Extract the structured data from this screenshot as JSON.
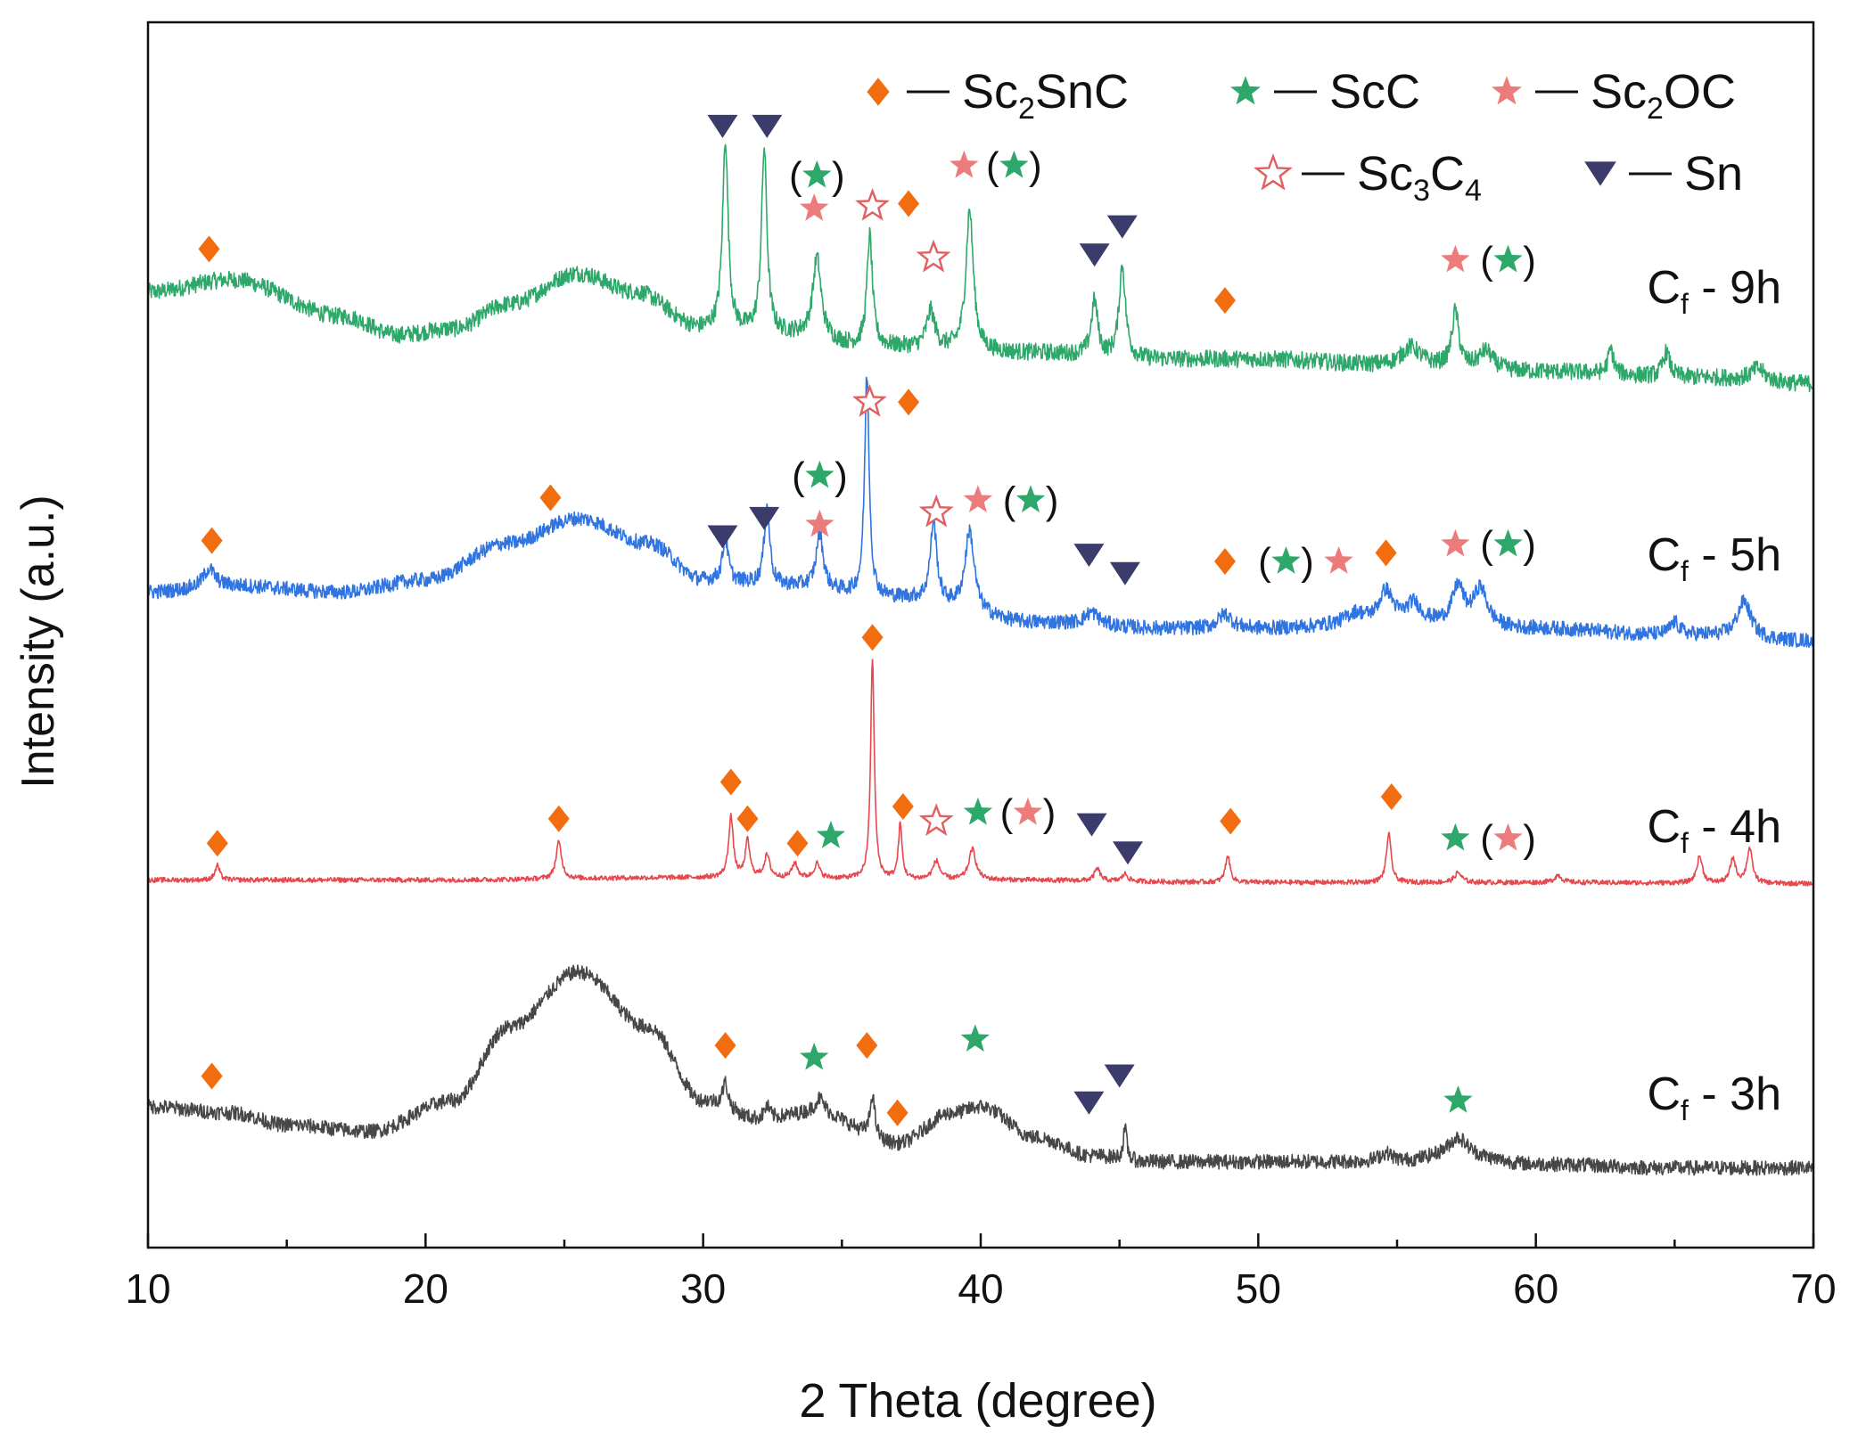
{
  "chart_data": {
    "type": "line",
    "title": "",
    "xlabel": "2 Theta (degree)",
    "ylabel": "Intensity (a.u.)",
    "xlim": [
      10,
      70
    ],
    "ylim": [
      0,
      1
    ],
    "x_ticks": [
      10,
      20,
      30,
      40,
      50,
      60,
      70
    ],
    "x_tick_labels": [
      "10",
      "20",
      "30",
      "40",
      "50",
      "60",
      "70"
    ],
    "grid": false,
    "legend_position": "top-right",
    "legend": [
      {
        "marker": "diamond",
        "color": "#f26c10",
        "label": "Sc2SnC",
        "base": "Sc",
        "sub": "2",
        "tail": "SnC"
      },
      {
        "marker": "star",
        "color": "#2ea86a",
        "label": "ScC",
        "base": "ScC",
        "sub": "",
        "tail": ""
      },
      {
        "marker": "star",
        "color": "#ec7c7c",
        "label": "Sc2OC",
        "base": "Sc",
        "sub": "2",
        "tail": "OC"
      },
      {
        "marker": "open-star",
        "color": "#e06060",
        "label": "Sc3C4",
        "base": "Sc",
        "sub": "3",
        "tail": "C",
        "sub2": "4"
      },
      {
        "marker": "triangle-down",
        "color": "#3c3c6c",
        "label": "Sn",
        "base": "Sn",
        "sub": "",
        "tail": ""
      }
    ],
    "series": [
      {
        "name": "Cf - 9h",
        "base": "C",
        "sub": "f",
        "tail": " - 9h",
        "color": "#2ea86a",
        "baseline": [
          [
            10,
            0.78
          ],
          [
            13,
            0.79
          ],
          [
            17,
            0.76
          ],
          [
            19,
            0.745
          ],
          [
            21,
            0.75
          ],
          [
            23,
            0.77
          ],
          [
            25.5,
            0.795
          ],
          [
            27.5,
            0.78
          ],
          [
            30,
            0.75
          ],
          [
            33,
            0.745
          ],
          [
            36,
            0.735
          ],
          [
            42,
            0.73
          ],
          [
            46,
            0.725
          ],
          [
            50,
            0.725
          ],
          [
            55,
            0.72
          ],
          [
            60,
            0.715
          ],
          [
            66,
            0.71
          ],
          [
            70,
            0.705
          ]
        ],
        "peaks": [
          [
            30.8,
            0.155,
            0.12
          ],
          [
            32.2,
            0.15,
            0.12
          ],
          [
            34.1,
            0.065,
            0.18
          ],
          [
            36.0,
            0.09,
            0.12
          ],
          [
            38.2,
            0.03,
            0.18
          ],
          [
            39.6,
            0.115,
            0.16
          ],
          [
            44.1,
            0.045,
            0.14
          ],
          [
            45.1,
            0.075,
            0.14
          ],
          [
            55.5,
            0.015,
            0.4
          ],
          [
            57.1,
            0.045,
            0.15
          ],
          [
            58.2,
            0.015,
            0.3
          ],
          [
            62.7,
            0.02,
            0.12
          ],
          [
            64.7,
            0.02,
            0.15
          ],
          [
            68.0,
            0.01,
            0.3
          ]
        ],
        "noise": 0.007
      },
      {
        "name": "Cf - 5h",
        "base": "C",
        "sub": "f",
        "tail": " - 5h",
        "color": "#2f74e0",
        "baseline": [
          [
            10,
            0.535
          ],
          [
            13,
            0.54
          ],
          [
            17,
            0.535
          ],
          [
            20,
            0.545
          ],
          [
            23,
            0.575
          ],
          [
            25.5,
            0.595
          ],
          [
            28,
            0.575
          ],
          [
            30,
            0.545
          ],
          [
            33,
            0.54
          ],
          [
            37,
            0.53
          ],
          [
            42,
            0.51
          ],
          [
            47,
            0.505
          ],
          [
            50,
            0.505
          ],
          [
            55,
            0.51
          ],
          [
            60,
            0.505
          ],
          [
            65,
            0.5
          ],
          [
            70,
            0.495
          ]
        ],
        "peaks": [
          [
            12.2,
            0.015,
            0.25
          ],
          [
            30.8,
            0.035,
            0.12
          ],
          [
            32.3,
            0.065,
            0.12
          ],
          [
            34.2,
            0.045,
            0.15
          ],
          [
            35.9,
            0.18,
            0.1
          ],
          [
            38.3,
            0.065,
            0.14
          ],
          [
            39.6,
            0.065,
            0.2
          ],
          [
            44.0,
            0.01,
            0.3
          ],
          [
            48.8,
            0.012,
            0.3
          ],
          [
            53.5,
            0.008,
            0.4
          ],
          [
            54.6,
            0.025,
            0.3
          ],
          [
            55.6,
            0.015,
            0.3
          ],
          [
            57.2,
            0.03,
            0.25
          ],
          [
            58.0,
            0.03,
            0.3
          ],
          [
            65.0,
            0.01,
            0.2
          ],
          [
            67.5,
            0.03,
            0.3
          ]
        ],
        "noise": 0.006
      },
      {
        "name": "Cf - 4h",
        "base": "C",
        "sub": "f",
        "tail": " - 4h",
        "color": "#e5484d",
        "baseline": [
          [
            10,
            0.3
          ],
          [
            20,
            0.3
          ],
          [
            30,
            0.302
          ],
          [
            40,
            0.3
          ],
          [
            50,
            0.298
          ],
          [
            60,
            0.298
          ],
          [
            70,
            0.297
          ]
        ],
        "peaks": [
          [
            12.5,
            0.012,
            0.1
          ],
          [
            24.8,
            0.03,
            0.12
          ],
          [
            31.0,
            0.05,
            0.1
          ],
          [
            31.6,
            0.03,
            0.1
          ],
          [
            32.3,
            0.018,
            0.12
          ],
          [
            33.3,
            0.012,
            0.12
          ],
          [
            34.1,
            0.012,
            0.12
          ],
          [
            36.1,
            0.18,
            0.08
          ],
          [
            37.1,
            0.045,
            0.08
          ],
          [
            38.4,
            0.015,
            0.15
          ],
          [
            39.7,
            0.025,
            0.15
          ],
          [
            44.2,
            0.01,
            0.12
          ],
          [
            45.2,
            0.006,
            0.12
          ],
          [
            48.9,
            0.022,
            0.1
          ],
          [
            54.7,
            0.04,
            0.1
          ],
          [
            57.2,
            0.008,
            0.15
          ],
          [
            60.8,
            0.006,
            0.15
          ],
          [
            65.9,
            0.022,
            0.12
          ],
          [
            67.1,
            0.02,
            0.12
          ],
          [
            67.7,
            0.028,
            0.12
          ]
        ],
        "noise": 0.002
      },
      {
        "name": "Cf - 3h",
        "base": "C",
        "sub": "f",
        "tail": " - 3h",
        "color": "#474747",
        "baseline": [
          [
            10,
            0.115
          ],
          [
            13,
            0.11
          ],
          [
            15,
            0.1
          ],
          [
            18,
            0.095
          ],
          [
            21,
            0.12
          ],
          [
            23,
            0.18
          ],
          [
            25.5,
            0.225
          ],
          [
            28,
            0.18
          ],
          [
            30,
            0.12
          ],
          [
            32,
            0.105
          ],
          [
            34,
            0.11
          ],
          [
            37,
            0.085
          ],
          [
            39,
            0.11
          ],
          [
            40,
            0.115
          ],
          [
            42,
            0.09
          ],
          [
            44,
            0.075
          ],
          [
            46,
            0.07
          ],
          [
            50,
            0.07
          ],
          [
            55,
            0.07
          ],
          [
            57,
            0.075
          ],
          [
            60,
            0.068
          ],
          [
            65,
            0.065
          ],
          [
            70,
            0.065
          ]
        ],
        "peaks": [
          [
            30.8,
            0.02,
            0.12
          ],
          [
            32.3,
            0.01,
            0.12
          ],
          [
            34.2,
            0.012,
            0.2
          ],
          [
            36.1,
            0.035,
            0.1
          ],
          [
            45.2,
            0.025,
            0.08
          ],
          [
            54.6,
            0.007,
            0.3
          ],
          [
            57.2,
            0.015,
            0.4
          ]
        ],
        "noise": 0.006
      }
    ],
    "markers": [
      {
        "t": "diamond",
        "x": 12.2,
        "y": 0.815
      },
      {
        "t": "tri",
        "x": 30.7,
        "y": 0.915
      },
      {
        "t": "tri",
        "x": 32.3,
        "y": 0.915
      },
      {
        "t": "gstar",
        "x": 34.1,
        "y": 0.875,
        "paren": true
      },
      {
        "t": "pstar",
        "x": 34.0,
        "y": 0.848
      },
      {
        "t": "ostar",
        "x": 36.1,
        "y": 0.85
      },
      {
        "t": "diamond",
        "x": 37.4,
        "y": 0.852
      },
      {
        "t": "ostar",
        "x": 38.3,
        "y": 0.808
      },
      {
        "t": "pstar",
        "x": 39.4,
        "y": 0.883
      },
      {
        "t": "gstar",
        "x": 41.2,
        "y": 0.883,
        "paren": true
      },
      {
        "t": "tri",
        "x": 44.1,
        "y": 0.81
      },
      {
        "t": "tri",
        "x": 45.1,
        "y": 0.833
      },
      {
        "t": "diamond",
        "x": 48.8,
        "y": 0.773
      },
      {
        "t": "pstar",
        "x": 57.1,
        "y": 0.806
      },
      {
        "t": "gstar",
        "x": 59.0,
        "y": 0.806,
        "paren": true
      },
      {
        "t": "diamond",
        "x": 12.3,
        "y": 0.577
      },
      {
        "t": "diamond",
        "x": 24.5,
        "y": 0.612
      },
      {
        "t": "tri",
        "x": 30.7,
        "y": 0.58
      },
      {
        "t": "tri",
        "x": 32.2,
        "y": 0.595
      },
      {
        "t": "gstar",
        "x": 34.2,
        "y": 0.63,
        "paren": true
      },
      {
        "t": "pstar",
        "x": 34.2,
        "y": 0.59
      },
      {
        "t": "ostar",
        "x": 36.0,
        "y": 0.69
      },
      {
        "t": "diamond",
        "x": 37.4,
        "y": 0.69
      },
      {
        "t": "ostar",
        "x": 38.4,
        "y": 0.6
      },
      {
        "t": "pstar",
        "x": 39.9,
        "y": 0.61
      },
      {
        "t": "gstar",
        "x": 41.8,
        "y": 0.61,
        "paren": true
      },
      {
        "t": "tri",
        "x": 43.9,
        "y": 0.565
      },
      {
        "t": "tri",
        "x": 45.2,
        "y": 0.55
      },
      {
        "t": "diamond",
        "x": 48.8,
        "y": 0.56
      },
      {
        "t": "gstar",
        "x": 51.0,
        "y": 0.56,
        "paren": true
      },
      {
        "t": "pstar",
        "x": 52.9,
        "y": 0.56
      },
      {
        "t": "diamond",
        "x": 54.6,
        "y": 0.567
      },
      {
        "t": "pstar",
        "x": 57.1,
        "y": 0.574
      },
      {
        "t": "gstar",
        "x": 59.0,
        "y": 0.574,
        "paren": true
      },
      {
        "t": "diamond",
        "x": 12.5,
        "y": 0.33
      },
      {
        "t": "diamond",
        "x": 24.8,
        "y": 0.35
      },
      {
        "t": "diamond",
        "x": 31.0,
        "y": 0.38
      },
      {
        "t": "diamond",
        "x": 31.6,
        "y": 0.35
      },
      {
        "t": "diamond",
        "x": 33.4,
        "y": 0.33
      },
      {
        "t": "gstar",
        "x": 34.6,
        "y": 0.336
      },
      {
        "t": "diamond",
        "x": 36.1,
        "y": 0.498
      },
      {
        "t": "diamond",
        "x": 37.2,
        "y": 0.36
      },
      {
        "t": "ostar",
        "x": 38.4,
        "y": 0.348
      },
      {
        "t": "gstar",
        "x": 39.9,
        "y": 0.355
      },
      {
        "t": "pstar",
        "x": 41.7,
        "y": 0.355,
        "paren": true
      },
      {
        "t": "tri",
        "x": 44.0,
        "y": 0.345
      },
      {
        "t": "tri",
        "x": 45.3,
        "y": 0.322
      },
      {
        "t": "diamond",
        "x": 49.0,
        "y": 0.348
      },
      {
        "t": "diamond",
        "x": 54.8,
        "y": 0.368
      },
      {
        "t": "gstar",
        "x": 57.1,
        "y": 0.334
      },
      {
        "t": "pstar",
        "x": 59.0,
        "y": 0.334,
        "paren": true
      },
      {
        "t": "diamond",
        "x": 12.3,
        "y": 0.14
      },
      {
        "t": "diamond",
        "x": 30.8,
        "y": 0.165
      },
      {
        "t": "gstar",
        "x": 34.0,
        "y": 0.155
      },
      {
        "t": "diamond",
        "x": 35.9,
        "y": 0.165
      },
      {
        "t": "diamond",
        "x": 37.0,
        "y": 0.11
      },
      {
        "t": "gstar",
        "x": 39.8,
        "y": 0.17
      },
      {
        "t": "tri",
        "x": 43.9,
        "y": 0.118
      },
      {
        "t": "tri",
        "x": 45.0,
        "y": 0.14
      },
      {
        "t": "gstar",
        "x": 57.2,
        "y": 0.12
      }
    ]
  },
  "colors": {
    "diamond": "#f26c10",
    "green_star": "#2ea86a",
    "pink_star": "#ec7c7c",
    "open_star": "#e06060",
    "triangle": "#3c3c6c",
    "axis": "#111111"
  }
}
